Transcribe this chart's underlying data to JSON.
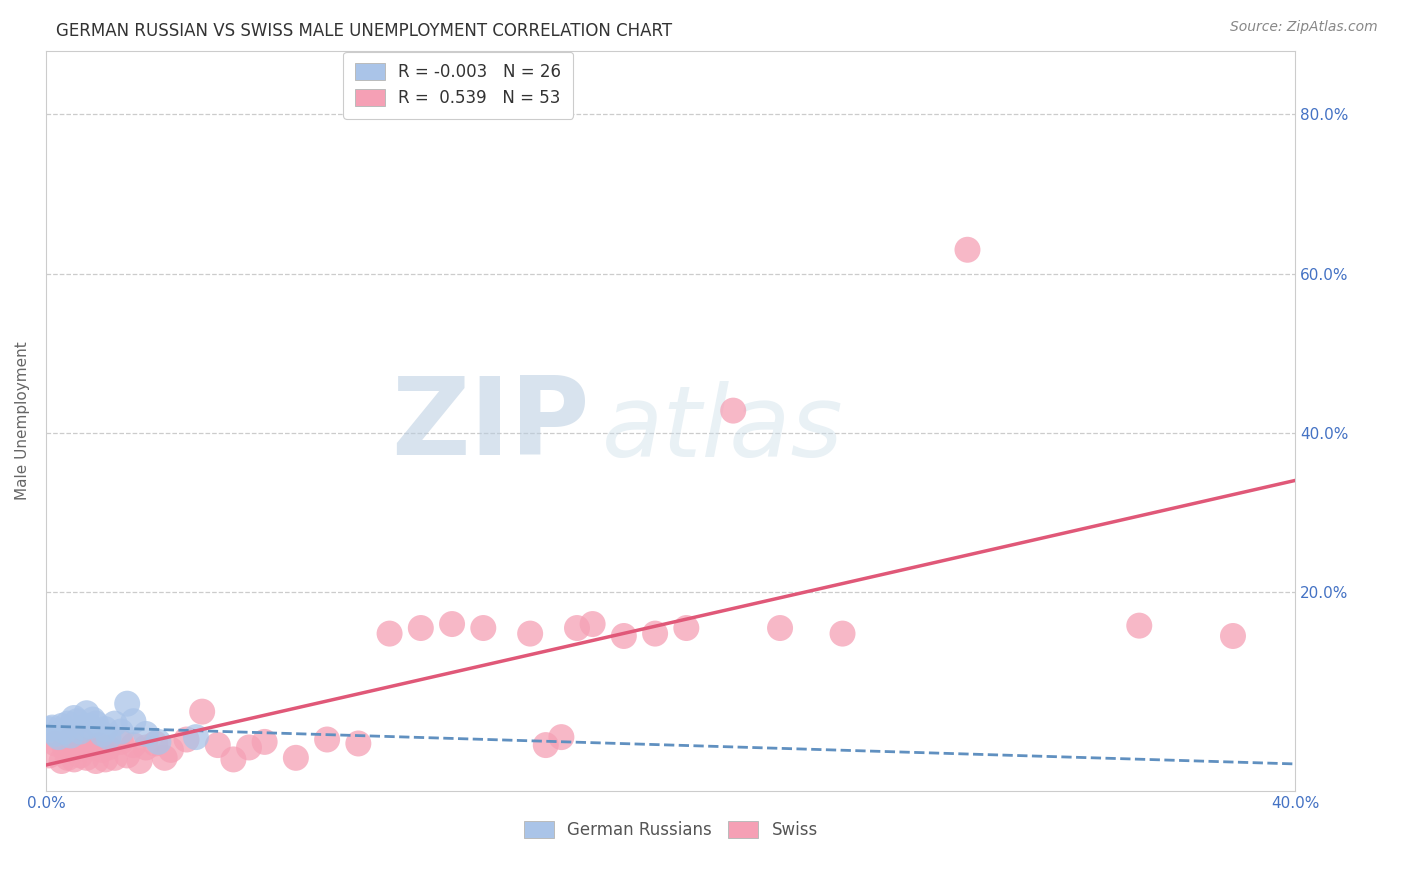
{
  "title": "GERMAN RUSSIAN VS SWISS MALE UNEMPLOYMENT CORRELATION CHART",
  "source": "Source: ZipAtlas.com",
  "ylabel": "Male Unemployment",
  "xlim": [
    0.0,
    0.4
  ],
  "ylim": [
    -0.05,
    0.88
  ],
  "xticks": [
    0.0,
    0.1,
    0.2,
    0.3,
    0.4
  ],
  "xtick_labels": [
    "0.0%",
    "",
    "",
    "",
    "40.0%"
  ],
  "ytick_positions": [
    0.2,
    0.4,
    0.6,
    0.8
  ],
  "ytick_labels_right": [
    "20.0%",
    "40.0%",
    "60.0%",
    "80.0%"
  ],
  "background_color": "#ffffff",
  "grid_color": "#cccccc",
  "german_russian_color": "#aac4e8",
  "swiss_color": "#f5a0b5",
  "german_russian_line_color": "#6090c0",
  "swiss_line_color": "#e05878",
  "legend_gr_R": "-0.003",
  "legend_gr_N": "26",
  "legend_sw_R": "0.539",
  "legend_sw_N": "53",
  "german_russian_x": [
    0.001,
    0.002,
    0.003,
    0.004,
    0.005,
    0.006,
    0.007,
    0.008,
    0.009,
    0.01,
    0.011,
    0.012,
    0.013,
    0.014,
    0.015,
    0.016,
    0.018,
    0.019,
    0.02,
    0.022,
    0.024,
    0.026,
    0.028,
    0.032,
    0.036,
    0.048
  ],
  "german_russian_y": [
    0.028,
    0.03,
    0.022,
    0.018,
    0.032,
    0.025,
    0.035,
    0.02,
    0.042,
    0.038,
    0.025,
    0.03,
    0.048,
    0.032,
    0.04,
    0.035,
    0.022,
    0.028,
    0.018,
    0.035,
    0.025,
    0.06,
    0.038,
    0.022,
    0.012,
    0.018
  ],
  "swiss_x": [
    0.001,
    0.003,
    0.005,
    0.006,
    0.007,
    0.008,
    0.009,
    0.01,
    0.011,
    0.012,
    0.013,
    0.015,
    0.016,
    0.017,
    0.018,
    0.019,
    0.02,
    0.022,
    0.024,
    0.026,
    0.028,
    0.03,
    0.032,
    0.035,
    0.038,
    0.04,
    0.045,
    0.05,
    0.055,
    0.06,
    0.065,
    0.07,
    0.08,
    0.09,
    0.1,
    0.11,
    0.12,
    0.13,
    0.14,
    0.155,
    0.16,
    0.165,
    0.17,
    0.175,
    0.185,
    0.195,
    0.205,
    0.22,
    0.235,
    0.255,
    0.295,
    0.35,
    0.38
  ],
  "swiss_y": [
    -0.005,
    0.01,
    -0.012,
    0.005,
    -0.008,
    0.015,
    -0.01,
    0.008,
    -0.005,
    0.012,
    -0.008,
    0.005,
    -0.012,
    0.008,
    0.002,
    -0.01,
    0.005,
    -0.008,
    0.012,
    -0.005,
    0.008,
    -0.012,
    0.005,
    0.01,
    -0.008,
    0.002,
    0.015,
    0.05,
    0.008,
    -0.01,
    0.005,
    0.012,
    -0.008,
    0.015,
    0.01,
    0.148,
    0.155,
    0.16,
    0.155,
    0.148,
    0.008,
    0.018,
    0.155,
    0.16,
    0.145,
    0.148,
    0.155,
    0.428,
    0.155,
    0.148,
    0.63,
    0.158,
    0.145
  ],
  "title_fontsize": 12,
  "tick_fontsize": 11,
  "source_fontsize": 10,
  "axis_label_fontsize": 11
}
